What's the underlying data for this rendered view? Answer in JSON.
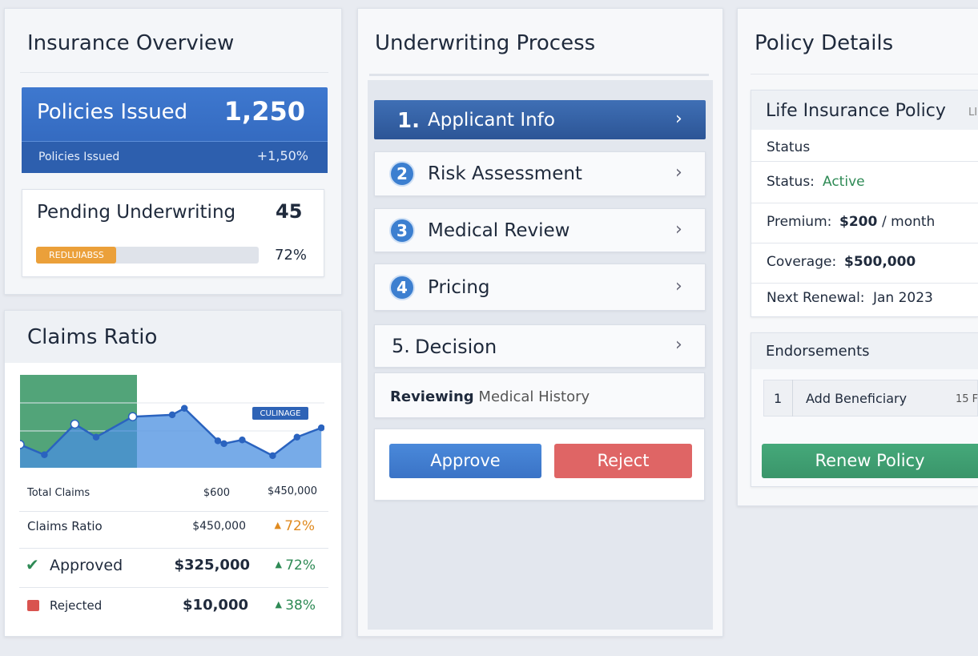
{
  "overview": {
    "title": "Insurance Overview",
    "policies": {
      "label": "Policies Issued",
      "value": "1,250",
      "sub_label": "Policies Issued",
      "change": "+1,50%"
    },
    "pending": {
      "label": "Pending Underwriting",
      "value": "45",
      "bar_label": "REDLUIABSS",
      "bar_fill": 36,
      "percent": "72%"
    }
  },
  "claims": {
    "title": "Claims Ratio",
    "chart": {
      "type": "area",
      "x": [
        0,
        8,
        18,
        25,
        37,
        50,
        54,
        65,
        67,
        73,
        83,
        91,
        99
      ],
      "values": [
        25,
        14,
        47,
        33,
        55,
        57,
        64,
        29,
        26,
        30,
        13,
        33,
        43
      ],
      "xlim": [
        0,
        100
      ],
      "ylim": [
        0,
        100
      ],
      "badge": "CULINAGE"
    },
    "rows": [
      [
        "Total Claims",
        "$600",
        "$450,000"
      ],
      [
        "Claims Ratio",
        "$450,000",
        "72%"
      ],
      [
        "Approved",
        "$325,000",
        "72%"
      ],
      [
        "Rejected",
        "$10,000",
        "38%"
      ]
    ]
  },
  "underwriting": {
    "title": "Underwriting Process",
    "steps": [
      {
        "number": "1.",
        "label": "Applicant Info"
      },
      {
        "number": "2",
        "label": "Risk Assessment"
      },
      {
        "number": "3",
        "label": "Medical Review"
      },
      {
        "number": "4",
        "label": "Pricing"
      },
      {
        "number": "5.",
        "label": "Decision"
      }
    ],
    "status": {
      "label": "Reviewing",
      "detail": "Medical History"
    },
    "buttons": [
      "Approve",
      "Reject"
    ]
  },
  "policy": {
    "title": "Policy Details",
    "card_title": "Life Insurance Policy",
    "card_tag": "LI",
    "section": "Status",
    "fields": [
      {
        "label": "Status:",
        "value": "Active"
      },
      {
        "label": "Premium:",
        "value": "$200",
        "unit": "/ month"
      },
      {
        "label": "Coverage:",
        "value": "$500,000"
      },
      {
        "label": "Next Renewal:",
        "value": "Jan 2023"
      }
    ],
    "endorsements": {
      "title": "Endorsements",
      "items": [
        {
          "number": "1",
          "label": "Add Beneficiary",
          "date": "15 F"
        }
      ]
    },
    "button": "Renew Policy"
  }
}
